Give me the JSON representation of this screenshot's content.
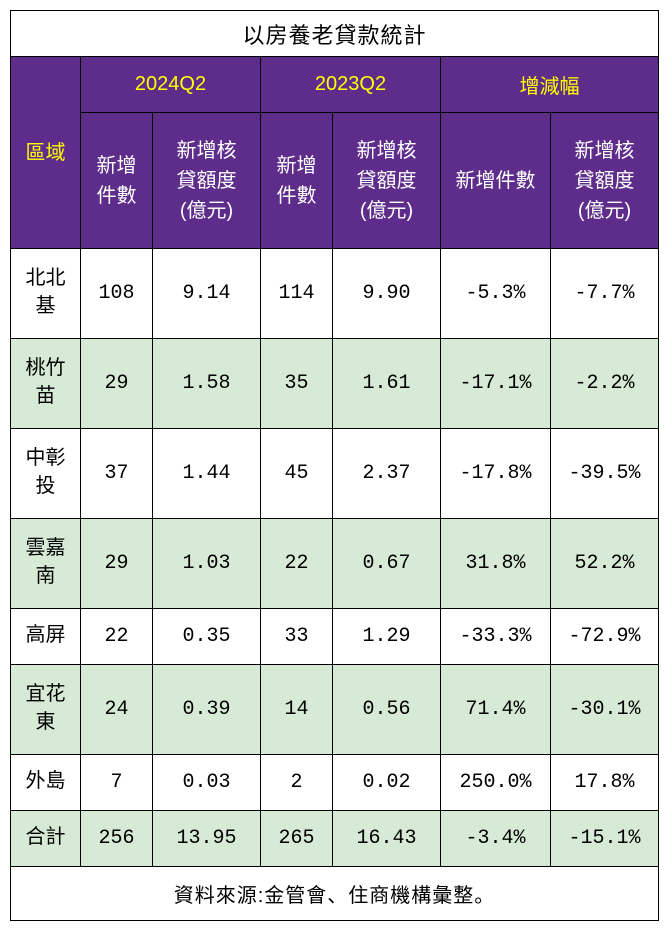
{
  "title": "以房養老貸款統計",
  "periods": [
    "2024Q2",
    "2023Q2",
    "增減幅"
  ],
  "region_header": "區域",
  "sub_headers": {
    "count": "新增\n件數",
    "amount": "新增核\n貸額度\n(億元)",
    "chg_count": "新增件數",
    "chg_amount": "新增核\n貸額度\n(億元)"
  },
  "rows": [
    {
      "region": "北北\n基",
      "c1": "108",
      "a1": "9.14",
      "c2": "114",
      "a2": "9.90",
      "dc": "-5.3%",
      "da": "-7.7%",
      "alt": false,
      "tall": true
    },
    {
      "region": "桃竹\n苗",
      "c1": "29",
      "a1": "1.58",
      "c2": "35",
      "a2": "1.61",
      "dc": "-17.1%",
      "da": "-2.2%",
      "alt": true,
      "tall": true
    },
    {
      "region": "中彰\n投",
      "c1": "37",
      "a1": "1.44",
      "c2": "45",
      "a2": "2.37",
      "dc": "-17.8%",
      "da": "-39.5%",
      "alt": false,
      "tall": true
    },
    {
      "region": "雲嘉\n南",
      "c1": "29",
      "a1": "1.03",
      "c2": "22",
      "a2": "0.67",
      "dc": "31.8%",
      "da": "52.2%",
      "alt": true,
      "tall": true
    },
    {
      "region": "高屏",
      "c1": "22",
      "a1": "0.35",
      "c2": "33",
      "a2": "1.29",
      "dc": "-33.3%",
      "da": "-72.9%",
      "alt": false,
      "tall": false
    },
    {
      "region": "宜花\n東",
      "c1": "24",
      "a1": "0.39",
      "c2": "14",
      "a2": "0.56",
      "dc": "71.4%",
      "da": "-30.1%",
      "alt": true,
      "tall": true
    },
    {
      "region": "外島",
      "c1": "7",
      "a1": "0.03",
      "c2": "2",
      "a2": "0.02",
      "dc": "250.0%",
      "da": "17.8%",
      "alt": false,
      "tall": false
    },
    {
      "region": "合計",
      "c1": "256",
      "a1": "13.95",
      "c2": "265",
      "a2": "16.43",
      "dc": "-3.4%",
      "da": "-15.1%",
      "alt": true,
      "tall": false
    }
  ],
  "source": "資料來源:金管會、住商機構彙整。",
  "colors": {
    "header_bg": "#5e2d8b",
    "header_period_fg": "#ffff00",
    "header_sub_fg": "#ffffff",
    "alt_row_bg": "#d6ead5",
    "white_bg": "#ffffff",
    "border": "#000000",
    "text": "#000000"
  },
  "fontsize": {
    "title": 22,
    "header": 20,
    "body": 20
  }
}
